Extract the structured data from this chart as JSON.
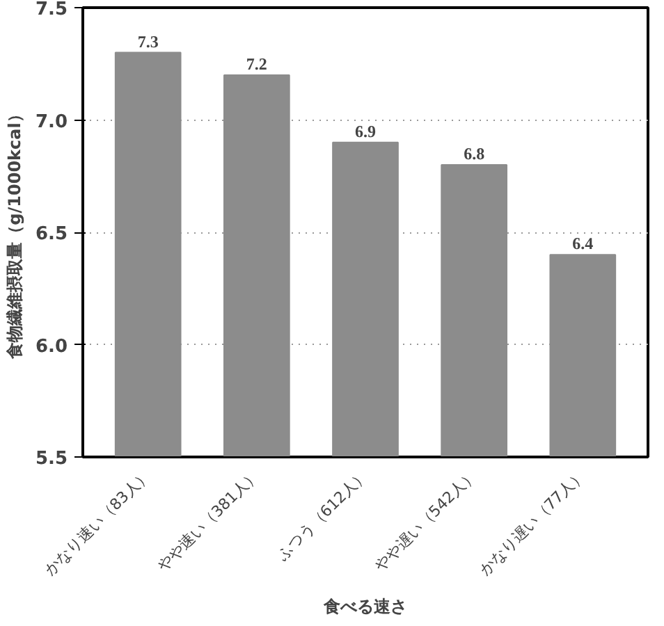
{
  "chart_data": {
    "type": "bar",
    "xlabel": "食べる速さ",
    "ylabel": "食物繊維摂取量（g/1000kcal）",
    "categories": [
      "かなり速い（83人）",
      "やや速い（381人）",
      "ふつう（612人）",
      "やや遅い（542人）",
      "かなり遅い（77人）"
    ],
    "values": [
      7.3,
      7.2,
      6.9,
      6.8,
      6.4
    ],
    "color": "#8c8c8c",
    "ylim": [
      5.5,
      7.5
    ],
    "yticks": [
      "5.5",
      "6.0",
      "6.5",
      "7.0",
      "7.5"
    ],
    "grid": "y",
    "data_labels": true
  }
}
